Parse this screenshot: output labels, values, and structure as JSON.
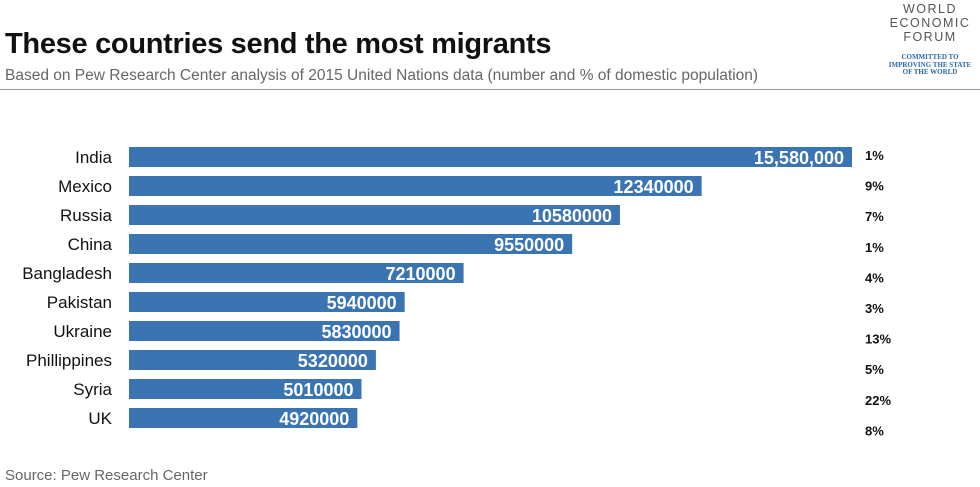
{
  "header": {
    "title": "These countries send the most migrants",
    "subtitle": "Based on Pew Research Center analysis of 2015 United Nations data (number and % of domestic population)"
  },
  "logo": {
    "lines": [
      "WORLD",
      "ECONOMIC",
      "FORUM"
    ],
    "tagline": [
      "COMMITTED TO",
      "IMPROVING THE STATE",
      "OF THE WORLD"
    ]
  },
  "footer": {
    "source": "Source: Pew Research Center"
  },
  "colors": {
    "bar": "#3a74b2",
    "bar_label": "#ffffff"
  },
  "chart_data": {
    "type": "bar",
    "orientation": "horizontal",
    "categories": [
      "India",
      "Mexico",
      "Russia",
      "China",
      "Bangladesh",
      "Pakistan",
      "Ukraine",
      "Phillippines",
      "Syria",
      "UK"
    ],
    "values": [
      15580000,
      12340000,
      10580000,
      9550000,
      7210000,
      5940000,
      5830000,
      5320000,
      5010000,
      4920000
    ],
    "value_labels": [
      "15,580,000",
      "12340000",
      "10580000",
      "9550000",
      "7210000",
      "5940000",
      "5830000",
      "5320000",
      "5010000",
      "4920000"
    ],
    "percent_labels": [
      "1%",
      "9%",
      "7%",
      "1%",
      "4%",
      "3%",
      "13%",
      "5%",
      "22%",
      "8%"
    ],
    "title": "These countries send the most migrants",
    "xlabel": "",
    "ylabel": "",
    "grid": false
  }
}
